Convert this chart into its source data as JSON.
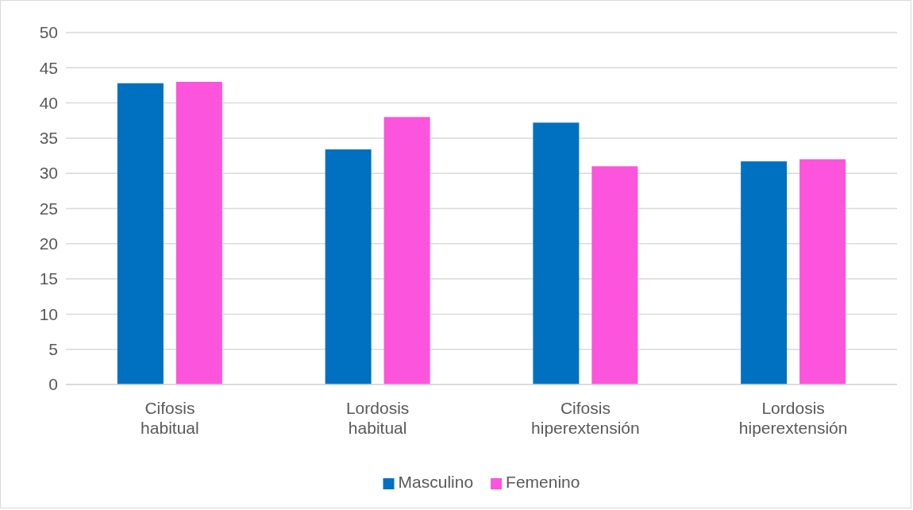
{
  "chart_data": {
    "type": "bar",
    "categories": [
      "Cifosis habitual",
      "Lordosis habitual",
      "Cifosis hiperextensión",
      "Lordosis hiperextensión"
    ],
    "series": [
      {
        "name": "Masculino",
        "color": "#0070c0",
        "values": [
          42.8,
          33.4,
          37.2,
          31.7
        ]
      },
      {
        "name": "Femenino",
        "color": "#fc54dc",
        "values": [
          43.0,
          38.0,
          31.0,
          32.0
        ]
      }
    ],
    "ylim": [
      0,
      50
    ],
    "yticks": [
      0,
      5,
      10,
      15,
      20,
      25,
      30,
      35,
      40,
      45,
      50
    ],
    "grid": "y",
    "legend": "bottom"
  }
}
